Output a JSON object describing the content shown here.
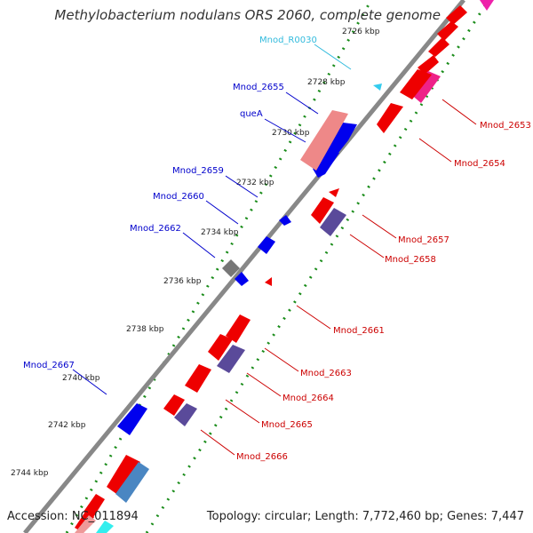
{
  "title": "Methylobacterium nodulans ORS 2060, complete genome",
  "footer": {
    "accession": "Accession: NC_011894",
    "summary": "Topology: circular; Length: 7,772,460 bp; Genes: 7,447"
  },
  "colors": {
    "backbone": "#888888",
    "ticks": "#1a8c1a",
    "forward": "#0000ee",
    "reverse": "#ee0000",
    "trna": "#33ccee",
    "label_fwd": "#0000cc",
    "label_rev": "#cc0000",
    "label_trna": "#33bbdd"
  },
  "ruler": [
    "2726 kbp",
    "2728 kbp",
    "2730 kbp",
    "2732 kbp",
    "2734 kbp",
    "2736 kbp",
    "2738 kbp",
    "2740 kbp",
    "2742 kbp",
    "2744 kbp"
  ],
  "labels": {
    "forward": [
      "Mnod_R0030",
      "Mnod_2655",
      "queA",
      "Mnod_2659",
      "Mnod_2660",
      "Mnod_2662",
      "Mnod_2667"
    ],
    "reverse": [
      "Mnod_2653",
      "Mnod_2654",
      "Mnod_2657",
      "Mnod_2658",
      "Mnod_2661",
      "Mnod_2663",
      "Mnod_2664",
      "Mnod_2665",
      "Mnod_2666"
    ]
  }
}
